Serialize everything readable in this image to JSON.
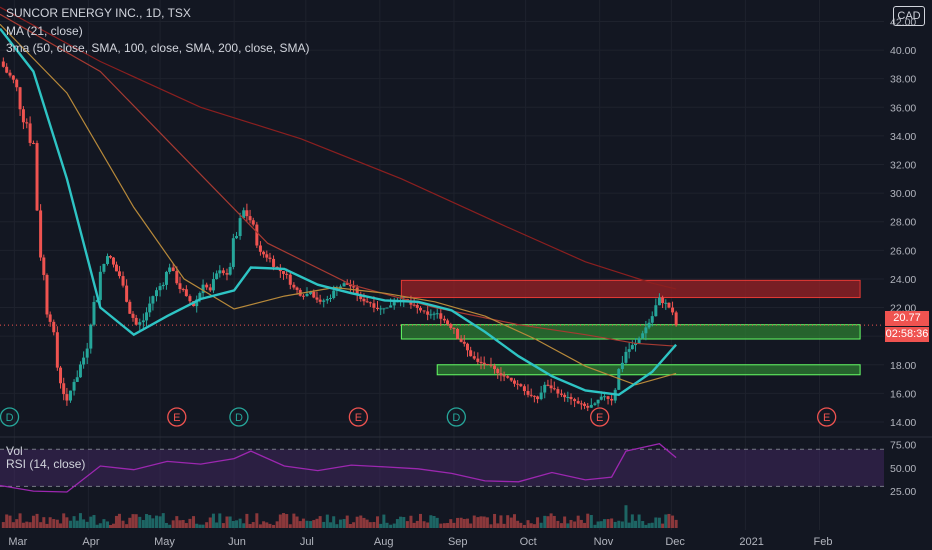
{
  "legend": {
    "title": "SUNCOR ENERGY INC., 1D, TSX",
    "ma21": "MA (21, close)",
    "ma3": "3ma (50, close, SMA, 100, close, SMA, 200, close, SMA)",
    "vol": "Vol",
    "rsi": "RSI (14, close)"
  },
  "currency_badge": "CAD",
  "last_price_label": "20.77",
  "countdown_label": "02:58:36",
  "colors": {
    "background": "#131722",
    "grid": "#1e222d",
    "up": "#26a69a",
    "down": "#ef5350",
    "ma21": "#2ec4c4",
    "ma50": "#b7893a",
    "ma100": "#a63a32",
    "ma200": "#8b1f1f",
    "rsi": "#9c27b0",
    "rsi_band": "#4a2a6a",
    "resistance_fill": "#9b2226",
    "support_fill": "#2e7d32"
  },
  "chart_data": {
    "type": "candlestick",
    "xlabel": "",
    "ylabel": "",
    "x_ticks": [
      "Mar",
      "Apr",
      "May",
      "Jun",
      "Jul",
      "Aug",
      "Sep",
      "Oct",
      "Nov",
      "Dec",
      "2021",
      "Feb"
    ],
    "y_ticks": [
      "14.00",
      "16.00",
      "18.00",
      "20.00",
      "22.00",
      "24.00",
      "26.00",
      "28.00",
      "30.00",
      "32.00",
      "34.00",
      "36.00",
      "38.00",
      "40.00",
      "42.00"
    ],
    "ylim": [
      13.3,
      43.5
    ],
    "x_domain": [
      "2020-02-24",
      "2021-02-28"
    ],
    "price_closes": [
      {
        "date": "2020-02-24",
        "close": 39.2
      },
      {
        "date": "2020-03-02",
        "close": 37.4
      },
      {
        "date": "2020-03-09",
        "close": 33.5
      },
      {
        "date": "2020-03-12",
        "close": 25.5
      },
      {
        "date": "2020-03-16",
        "close": 21.0
      },
      {
        "date": "2020-03-19",
        "close": 17.8
      },
      {
        "date": "2020-03-23",
        "close": 15.5
      },
      {
        "date": "2020-03-26",
        "close": 16.8
      },
      {
        "date": "2020-03-30",
        "close": 18.5
      },
      {
        "date": "2020-04-02",
        "close": 20.8
      },
      {
        "date": "2020-04-06",
        "close": 24.5
      },
      {
        "date": "2020-04-09",
        "close": 25.6
      },
      {
        "date": "2020-04-14",
        "close": 24.2
      },
      {
        "date": "2020-04-17",
        "close": 22.4
      },
      {
        "date": "2020-04-21",
        "close": 20.8
      },
      {
        "date": "2020-04-24",
        "close": 21.1
      },
      {
        "date": "2020-04-28",
        "close": 22.8
      },
      {
        "date": "2020-05-01",
        "close": 23.5
      },
      {
        "date": "2020-05-05",
        "close": 24.8
      },
      {
        "date": "2020-05-08",
        "close": 23.7
      },
      {
        "date": "2020-05-12",
        "close": 22.8
      },
      {
        "date": "2020-05-15",
        "close": 22.1
      },
      {
        "date": "2020-05-19",
        "close": 23.6
      },
      {
        "date": "2020-05-22",
        "close": 23.2
      },
      {
        "date": "2020-05-26",
        "close": 24.6
      },
      {
        "date": "2020-05-29",
        "close": 24.3
      },
      {
        "date": "2020-06-02",
        "close": 27.0
      },
      {
        "date": "2020-06-05",
        "close": 28.8
      },
      {
        "date": "2020-06-09",
        "close": 27.8
      },
      {
        "date": "2020-06-12",
        "close": 25.9
      },
      {
        "date": "2020-06-16",
        "close": 25.4
      },
      {
        "date": "2020-06-19",
        "close": 24.7
      },
      {
        "date": "2020-06-23",
        "close": 24.3
      },
      {
        "date": "2020-06-26",
        "close": 23.4
      },
      {
        "date": "2020-06-30",
        "close": 22.8
      },
      {
        "date": "2020-07-03",
        "close": 23.1
      },
      {
        "date": "2020-07-07",
        "close": 22.4
      },
      {
        "date": "2020-07-10",
        "close": 22.6
      },
      {
        "date": "2020-07-14",
        "close": 23.3
      },
      {
        "date": "2020-07-17",
        "close": 23.7
      },
      {
        "date": "2020-07-21",
        "close": 23.4
      },
      {
        "date": "2020-07-24",
        "close": 22.6
      },
      {
        "date": "2020-07-28",
        "close": 22.3
      },
      {
        "date": "2020-07-31",
        "close": 21.9
      },
      {
        "date": "2020-08-04",
        "close": 22.0
      },
      {
        "date": "2020-08-07",
        "close": 22.4
      },
      {
        "date": "2020-08-11",
        "close": 22.6
      },
      {
        "date": "2020-08-14",
        "close": 22.2
      },
      {
        "date": "2020-08-18",
        "close": 21.8
      },
      {
        "date": "2020-08-21",
        "close": 21.5
      },
      {
        "date": "2020-08-25",
        "close": 21.6
      },
      {
        "date": "2020-08-28",
        "close": 21.1
      },
      {
        "date": "2020-09-01",
        "close": 20.5
      },
      {
        "date": "2020-09-04",
        "close": 19.6
      },
      {
        "date": "2020-09-08",
        "close": 18.6
      },
      {
        "date": "2020-09-11",
        "close": 18.2
      },
      {
        "date": "2020-09-15",
        "close": 18.0
      },
      {
        "date": "2020-09-18",
        "close": 17.7
      },
      {
        "date": "2020-09-22",
        "close": 17.2
      },
      {
        "date": "2020-09-25",
        "close": 16.9
      },
      {
        "date": "2020-09-29",
        "close": 16.5
      },
      {
        "date": "2020-10-02",
        "close": 15.9
      },
      {
        "date": "2020-10-06",
        "close": 15.6
      },
      {
        "date": "2020-10-09",
        "close": 16.6
      },
      {
        "date": "2020-10-13",
        "close": 16.3
      },
      {
        "date": "2020-10-16",
        "close": 15.9
      },
      {
        "date": "2020-10-20",
        "close": 15.6
      },
      {
        "date": "2020-10-23",
        "close": 15.3
      },
      {
        "date": "2020-10-27",
        "close": 15.0
      },
      {
        "date": "2020-10-30",
        "close": 15.3
      },
      {
        "date": "2020-11-03",
        "close": 15.8
      },
      {
        "date": "2020-11-06",
        "close": 15.5
      },
      {
        "date": "2020-11-09",
        "close": 17.7
      },
      {
        "date": "2020-11-12",
        "close": 18.9
      },
      {
        "date": "2020-11-16",
        "close": 19.5
      },
      {
        "date": "2020-11-19",
        "close": 20.2
      },
      {
        "date": "2020-11-23",
        "close": 21.4
      },
      {
        "date": "2020-11-26",
        "close": 22.7
      },
      {
        "date": "2020-11-30",
        "close": 22.0
      },
      {
        "date": "2020-12-03",
        "close": 20.77
      }
    ],
    "ma21": [
      {
        "date": "2020-02-24",
        "value": 41.5
      },
      {
        "date": "2020-03-09",
        "value": 38.5
      },
      {
        "date": "2020-03-23",
        "value": 31.0
      },
      {
        "date": "2020-04-06",
        "value": 22.0
      },
      {
        "date": "2020-04-20",
        "value": 20.1
      },
      {
        "date": "2020-05-04",
        "value": 21.4
      },
      {
        "date": "2020-05-18",
        "value": 22.6
      },
      {
        "date": "2020-06-01",
        "value": 23.2
      },
      {
        "date": "2020-06-08",
        "value": 24.8
      },
      {
        "date": "2020-06-22",
        "value": 24.7
      },
      {
        "date": "2020-07-06",
        "value": 23.6
      },
      {
        "date": "2020-07-20",
        "value": 23.0
      },
      {
        "date": "2020-08-03",
        "value": 22.5
      },
      {
        "date": "2020-08-17",
        "value": 22.4
      },
      {
        "date": "2020-08-31",
        "value": 21.8
      },
      {
        "date": "2020-09-14",
        "value": 20.3
      },
      {
        "date": "2020-09-28",
        "value": 18.6
      },
      {
        "date": "2020-10-12",
        "value": 17.2
      },
      {
        "date": "2020-10-26",
        "value": 16.2
      },
      {
        "date": "2020-11-09",
        "value": 15.9
      },
      {
        "date": "2020-11-23",
        "value": 17.5
      },
      {
        "date": "2020-12-03",
        "value": 19.4
      }
    ],
    "ma50": [
      {
        "date": "2020-02-24",
        "value": 41.8
      },
      {
        "date": "2020-03-23",
        "value": 37.0
      },
      {
        "date": "2020-04-20",
        "value": 29.0
      },
      {
        "date": "2020-05-11",
        "value": 24.0
      },
      {
        "date": "2020-06-01",
        "value": 21.9
      },
      {
        "date": "2020-06-22",
        "value": 22.8
      },
      {
        "date": "2020-07-13",
        "value": 23.4
      },
      {
        "date": "2020-08-03",
        "value": 23.0
      },
      {
        "date": "2020-08-24",
        "value": 22.4
      },
      {
        "date": "2020-09-14",
        "value": 21.4
      },
      {
        "date": "2020-10-05",
        "value": 19.8
      },
      {
        "date": "2020-10-26",
        "value": 17.9
      },
      {
        "date": "2020-11-16",
        "value": 16.6
      },
      {
        "date": "2020-12-03",
        "value": 17.4
      }
    ],
    "ma100": [
      {
        "date": "2020-02-24",
        "value": 42.5
      },
      {
        "date": "2020-04-06",
        "value": 38.5
      },
      {
        "date": "2020-05-11",
        "value": 32.5
      },
      {
        "date": "2020-06-15",
        "value": 26.5
      },
      {
        "date": "2020-07-20",
        "value": 23.6
      },
      {
        "date": "2020-08-24",
        "value": 22.0
      },
      {
        "date": "2020-09-28",
        "value": 20.8
      },
      {
        "date": "2020-10-26",
        "value": 20.1
      },
      {
        "date": "2020-11-16",
        "value": 19.5
      },
      {
        "date": "2020-12-03",
        "value": 19.3
      }
    ],
    "ma200": [
      {
        "date": "2020-02-24",
        "value": 43.0
      },
      {
        "date": "2020-04-06",
        "value": 39.2
      },
      {
        "date": "2020-05-18",
        "value": 36.0
      },
      {
        "date": "2020-06-29",
        "value": 33.8
      },
      {
        "date": "2020-08-10",
        "value": 31.0
      },
      {
        "date": "2020-09-21",
        "value": 27.8
      },
      {
        "date": "2020-10-26",
        "value": 25.2
      },
      {
        "date": "2020-11-23",
        "value": 23.7
      },
      {
        "date": "2020-12-03",
        "value": 23.3
      }
    ],
    "zones": [
      {
        "kind": "resistance",
        "start": "2020-08-10",
        "end": "2021-02-18",
        "low": 22.7,
        "high": 23.9
      },
      {
        "kind": "support",
        "start": "2020-08-10",
        "end": "2021-02-18",
        "low": 19.8,
        "high": 20.8
      },
      {
        "kind": "support",
        "start": "2020-08-25",
        "end": "2021-02-18",
        "low": 17.3,
        "high": 18.0
      }
    ],
    "events": [
      {
        "date": "2020-02-28",
        "type": "D"
      },
      {
        "date": "2020-05-08",
        "type": "E"
      },
      {
        "date": "2020-06-03",
        "type": "D"
      },
      {
        "date": "2020-07-23",
        "type": "E"
      },
      {
        "date": "2020-09-02",
        "type": "D"
      },
      {
        "date": "2020-11-01",
        "type": "E"
      },
      {
        "date": "2021-02-04",
        "type": "E"
      }
    ],
    "rsi": {
      "y_ticks": [
        "25.00",
        "50.00",
        "75.00"
      ],
      "bands": [
        30,
        70
      ],
      "ylim": [
        10,
        80
      ],
      "values": [
        {
          "date": "2020-02-24",
          "value": 31
        },
        {
          "date": "2020-03-09",
          "value": 25
        },
        {
          "date": "2020-03-23",
          "value": 24
        },
        {
          "date": "2020-04-06",
          "value": 52
        },
        {
          "date": "2020-04-20",
          "value": 48
        },
        {
          "date": "2020-05-04",
          "value": 57
        },
        {
          "date": "2020-05-18",
          "value": 54
        },
        {
          "date": "2020-06-01",
          "value": 60
        },
        {
          "date": "2020-06-08",
          "value": 68
        },
        {
          "date": "2020-06-22",
          "value": 52
        },
        {
          "date": "2020-07-06",
          "value": 47
        },
        {
          "date": "2020-07-20",
          "value": 53
        },
        {
          "date": "2020-08-03",
          "value": 51
        },
        {
          "date": "2020-08-17",
          "value": 49
        },
        {
          "date": "2020-08-31",
          "value": 44
        },
        {
          "date": "2020-09-14",
          "value": 36
        },
        {
          "date": "2020-09-28",
          "value": 35
        },
        {
          "date": "2020-10-12",
          "value": 45
        },
        {
          "date": "2020-10-26",
          "value": 37
        },
        {
          "date": "2020-11-06",
          "value": 40
        },
        {
          "date": "2020-11-12",
          "value": 68
        },
        {
          "date": "2020-11-26",
          "value": 76
        },
        {
          "date": "2020-12-03",
          "value": 61
        }
      ]
    }
  }
}
